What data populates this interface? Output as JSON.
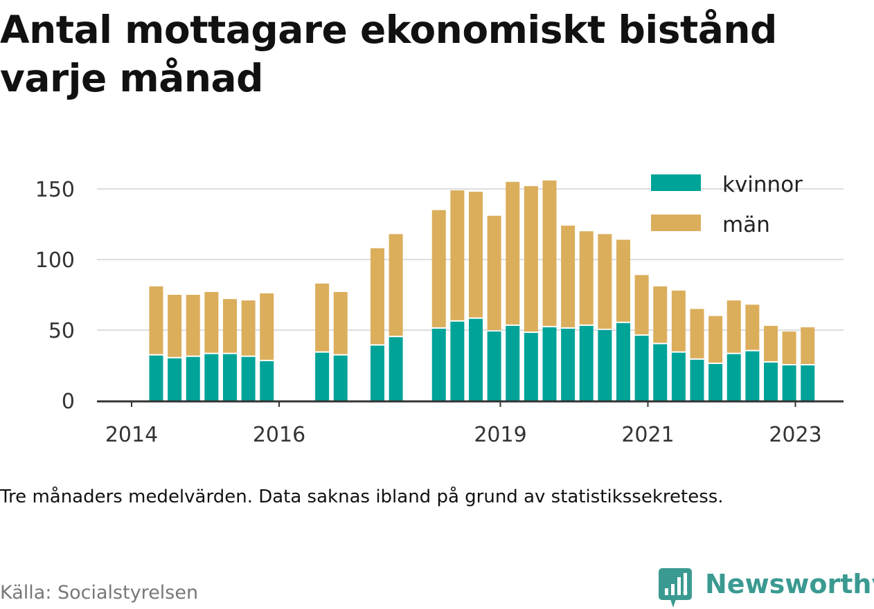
{
  "title": "Antal mottagare ekonomiskt bistånd varje månad",
  "note": "Tre månaders medelvärden. Data saknas ibland på grund av statistikssekretess.",
  "source": "Källa: Socialstyrelsen",
  "brand": {
    "name": "Newsworthy",
    "icon": "newsworthy-logo-icon"
  },
  "colors": {
    "kvinnor": "#00a398",
    "man": "#dbae5c",
    "grid": "#dddddd",
    "axis": "#333333",
    "brand": "#3a9a91"
  },
  "chart_data": {
    "type": "bar",
    "stacked": true,
    "title": "Antal mottagare ekonomiskt bistånd varje månad",
    "xlabel": "",
    "ylabel": "",
    "ylim": [
      0,
      150
    ],
    "yticks": [
      0,
      50,
      100,
      150
    ],
    "xticks": [
      "2014",
      "2016",
      "2019",
      "2021",
      "2023"
    ],
    "grid": true,
    "legend": "top-right",
    "x": [
      "2014-05",
      "2014-08",
      "2014-11",
      "2015-02",
      "2015-05",
      "2015-08",
      "2015-11",
      "2016-08",
      "2016-11",
      "2017-05",
      "2017-08",
      "2018-03",
      "2018-06",
      "2018-09",
      "2018-12",
      "2019-03",
      "2019-06",
      "2019-09",
      "2019-12",
      "2020-03",
      "2020-06",
      "2020-09",
      "2020-12",
      "2021-03",
      "2021-06",
      "2021-09",
      "2021-12",
      "2022-03",
      "2022-06",
      "2022-09",
      "2022-12",
      "2023-03"
    ],
    "series": [
      {
        "name": "kvinnor",
        "color": "#00a398",
        "values": [
          32,
          30,
          31,
          33,
          33,
          31,
          28,
          34,
          32,
          39,
          45,
          51,
          56,
          58,
          49,
          53,
          48,
          52,
          51,
          53,
          50,
          55,
          46,
          40,
          34,
          29,
          26,
          33,
          35,
          27,
          25,
          25
        ]
      },
      {
        "name": "män",
        "color": "#dbae5c",
        "values": [
          49,
          45,
          44,
          44,
          39,
          40,
          48,
          49,
          45,
          69,
          73,
          84,
          93,
          90,
          82,
          102,
          104,
          104,
          73,
          67,
          68,
          59,
          43,
          41,
          44,
          36,
          34,
          38,
          33,
          26,
          24,
          27
        ]
      }
    ]
  }
}
